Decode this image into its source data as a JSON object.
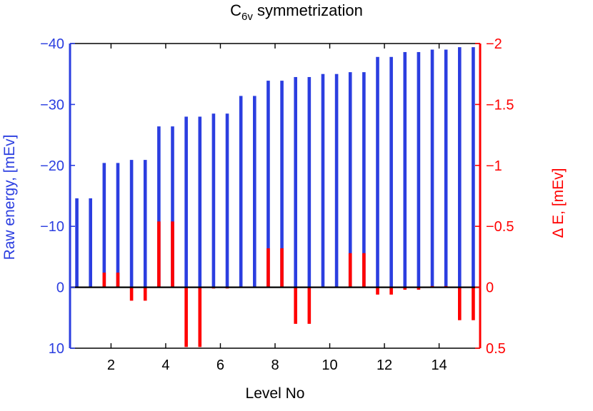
{
  "chart_data": {
    "type": "bar",
    "title": {
      "main": "C",
      "sub": "6v",
      "rest": " symmetrization"
    },
    "xlabel": "Level No",
    "ylabel_left": "Raw energy, [mEv]",
    "ylabel_right": "Δ E, [mEv]",
    "xlim": [
      0.5,
      15.5
    ],
    "x_ticks": [
      2,
      4,
      6,
      8,
      10,
      12,
      14
    ],
    "left_axis": {
      "ylim": [
        -40,
        10
      ],
      "reversed": true,
      "ticks": [
        -40,
        -30,
        -20,
        -10,
        0,
        10
      ],
      "color": "#2b3ee0"
    },
    "right_axis": {
      "ylim": [
        -2,
        0.5
      ],
      "reversed": true,
      "ticks": [
        -2,
        -1.5,
        -1,
        -0.5,
        0,
        0.5
      ],
      "color": "#ff0000"
    },
    "series": [
      {
        "name": "Raw energy",
        "axis": "left",
        "color": "#2b3ee0",
        "x": [
          0.75,
          1.25,
          1.75,
          2.25,
          2.75,
          3.25,
          3.75,
          4.25,
          4.75,
          5.25,
          5.75,
          6.25,
          6.75,
          7.25,
          7.75,
          8.25,
          8.75,
          9.25,
          9.75,
          10.25,
          10.75,
          11.25,
          11.75,
          12.25,
          12.75,
          13.25,
          13.75,
          14.25,
          14.75,
          15.25
        ],
        "values": [
          -14.6,
          -14.6,
          -20.4,
          -20.4,
          -20.9,
          -20.9,
          -26.4,
          -26.4,
          -28.0,
          -28.0,
          -28.5,
          -28.5,
          -31.4,
          -31.4,
          -33.9,
          -33.9,
          -34.5,
          -34.5,
          -35.0,
          -35.0,
          -35.3,
          -35.3,
          -37.8,
          -37.8,
          -38.6,
          -38.6,
          -39.0,
          -39.0,
          -39.4,
          -39.4
        ]
      },
      {
        "name": "Δ E",
        "axis": "right",
        "color": "#ff0000",
        "x": [
          1.75,
          2.25,
          2.75,
          3.25,
          3.75,
          4.25,
          4.75,
          5.25,
          5.75,
          6.25,
          6.75,
          7.25,
          7.75,
          8.25,
          8.75,
          9.25,
          9.75,
          10.25,
          10.75,
          11.25,
          11.75,
          12.25,
          12.75,
          13.25,
          13.75,
          14.25,
          14.75,
          15.25
        ],
        "values": [
          -0.12,
          -0.12,
          0.11,
          0.11,
          -0.54,
          -0.54,
          0.49,
          0.49,
          0.01,
          0.01,
          0.0,
          0.0,
          -0.32,
          -0.32,
          0.3,
          0.3,
          0.0,
          0.0,
          -0.28,
          -0.28,
          0.06,
          0.06,
          0.02,
          0.02,
          -0.01,
          -0.01,
          0.27,
          0.27
        ]
      }
    ]
  }
}
